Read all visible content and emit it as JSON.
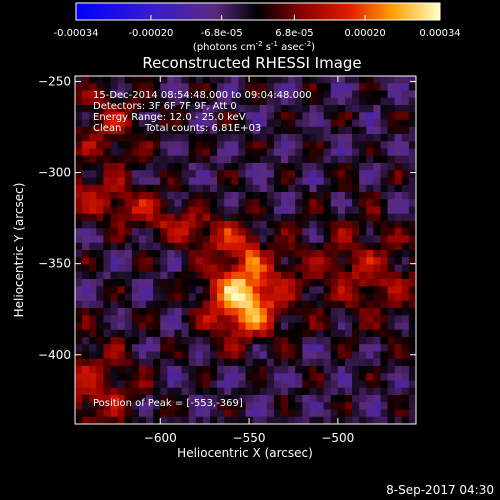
{
  "colorbar": {
    "min": -0.00034,
    "max": 0.00034,
    "tick_labels": [
      "-0.00034",
      "-0.00020",
      "-6.8e-05",
      "6.8e-05",
      "0.00020",
      "0.00034"
    ],
    "tick_values": [
      -0.00034,
      -0.0002,
      -6.8e-05,
      6.8e-05,
      0.0002,
      0.00034
    ],
    "unit_base": "(photons cm",
    "unit_exp1": "-2",
    "unit_mid1": " s",
    "unit_exp2": "-1",
    "unit_mid2": " asec",
    "unit_exp3": "-2",
    "unit_end": ")"
  },
  "title": "Reconstructed RHESSI Image",
  "annotations": {
    "time_range": "15-Dec-2014 08:54:48.000 to 09:04:48.000",
    "detectors": "Detectors: 3F 6F 7F 9F, Att 0",
    "energy": "Energy Range: 12.0 - 25.0 keV",
    "clean": "Clean",
    "counts": "Total counts: 6.81E+03",
    "peak": "Position of Peak = [-553,-369]"
  },
  "footer": {
    "date": "8-Sep-2017 04:30"
  },
  "chart_data": {
    "type": "heatmap",
    "title": "Reconstructed RHESSI Image",
    "xlabel": "Heliocentric X (arcsec)",
    "ylabel": "Heliocentric Y (arcsec)",
    "xlim": [
      -648,
      -456
    ],
    "ylim": [
      -438,
      -247
    ],
    "xticks": [
      -600,
      -550,
      -500
    ],
    "xtick_labels": [
      "−600",
      "−550",
      "−500"
    ],
    "yticks": [
      -250,
      -300,
      -350,
      -400
    ],
    "ytick_labels": [
      "−250",
      "−300",
      "−350",
      "−400"
    ],
    "peak_position": [
      -553,
      -369
    ],
    "value_range": [
      -0.00034,
      0.00034
    ],
    "grid": false
  }
}
